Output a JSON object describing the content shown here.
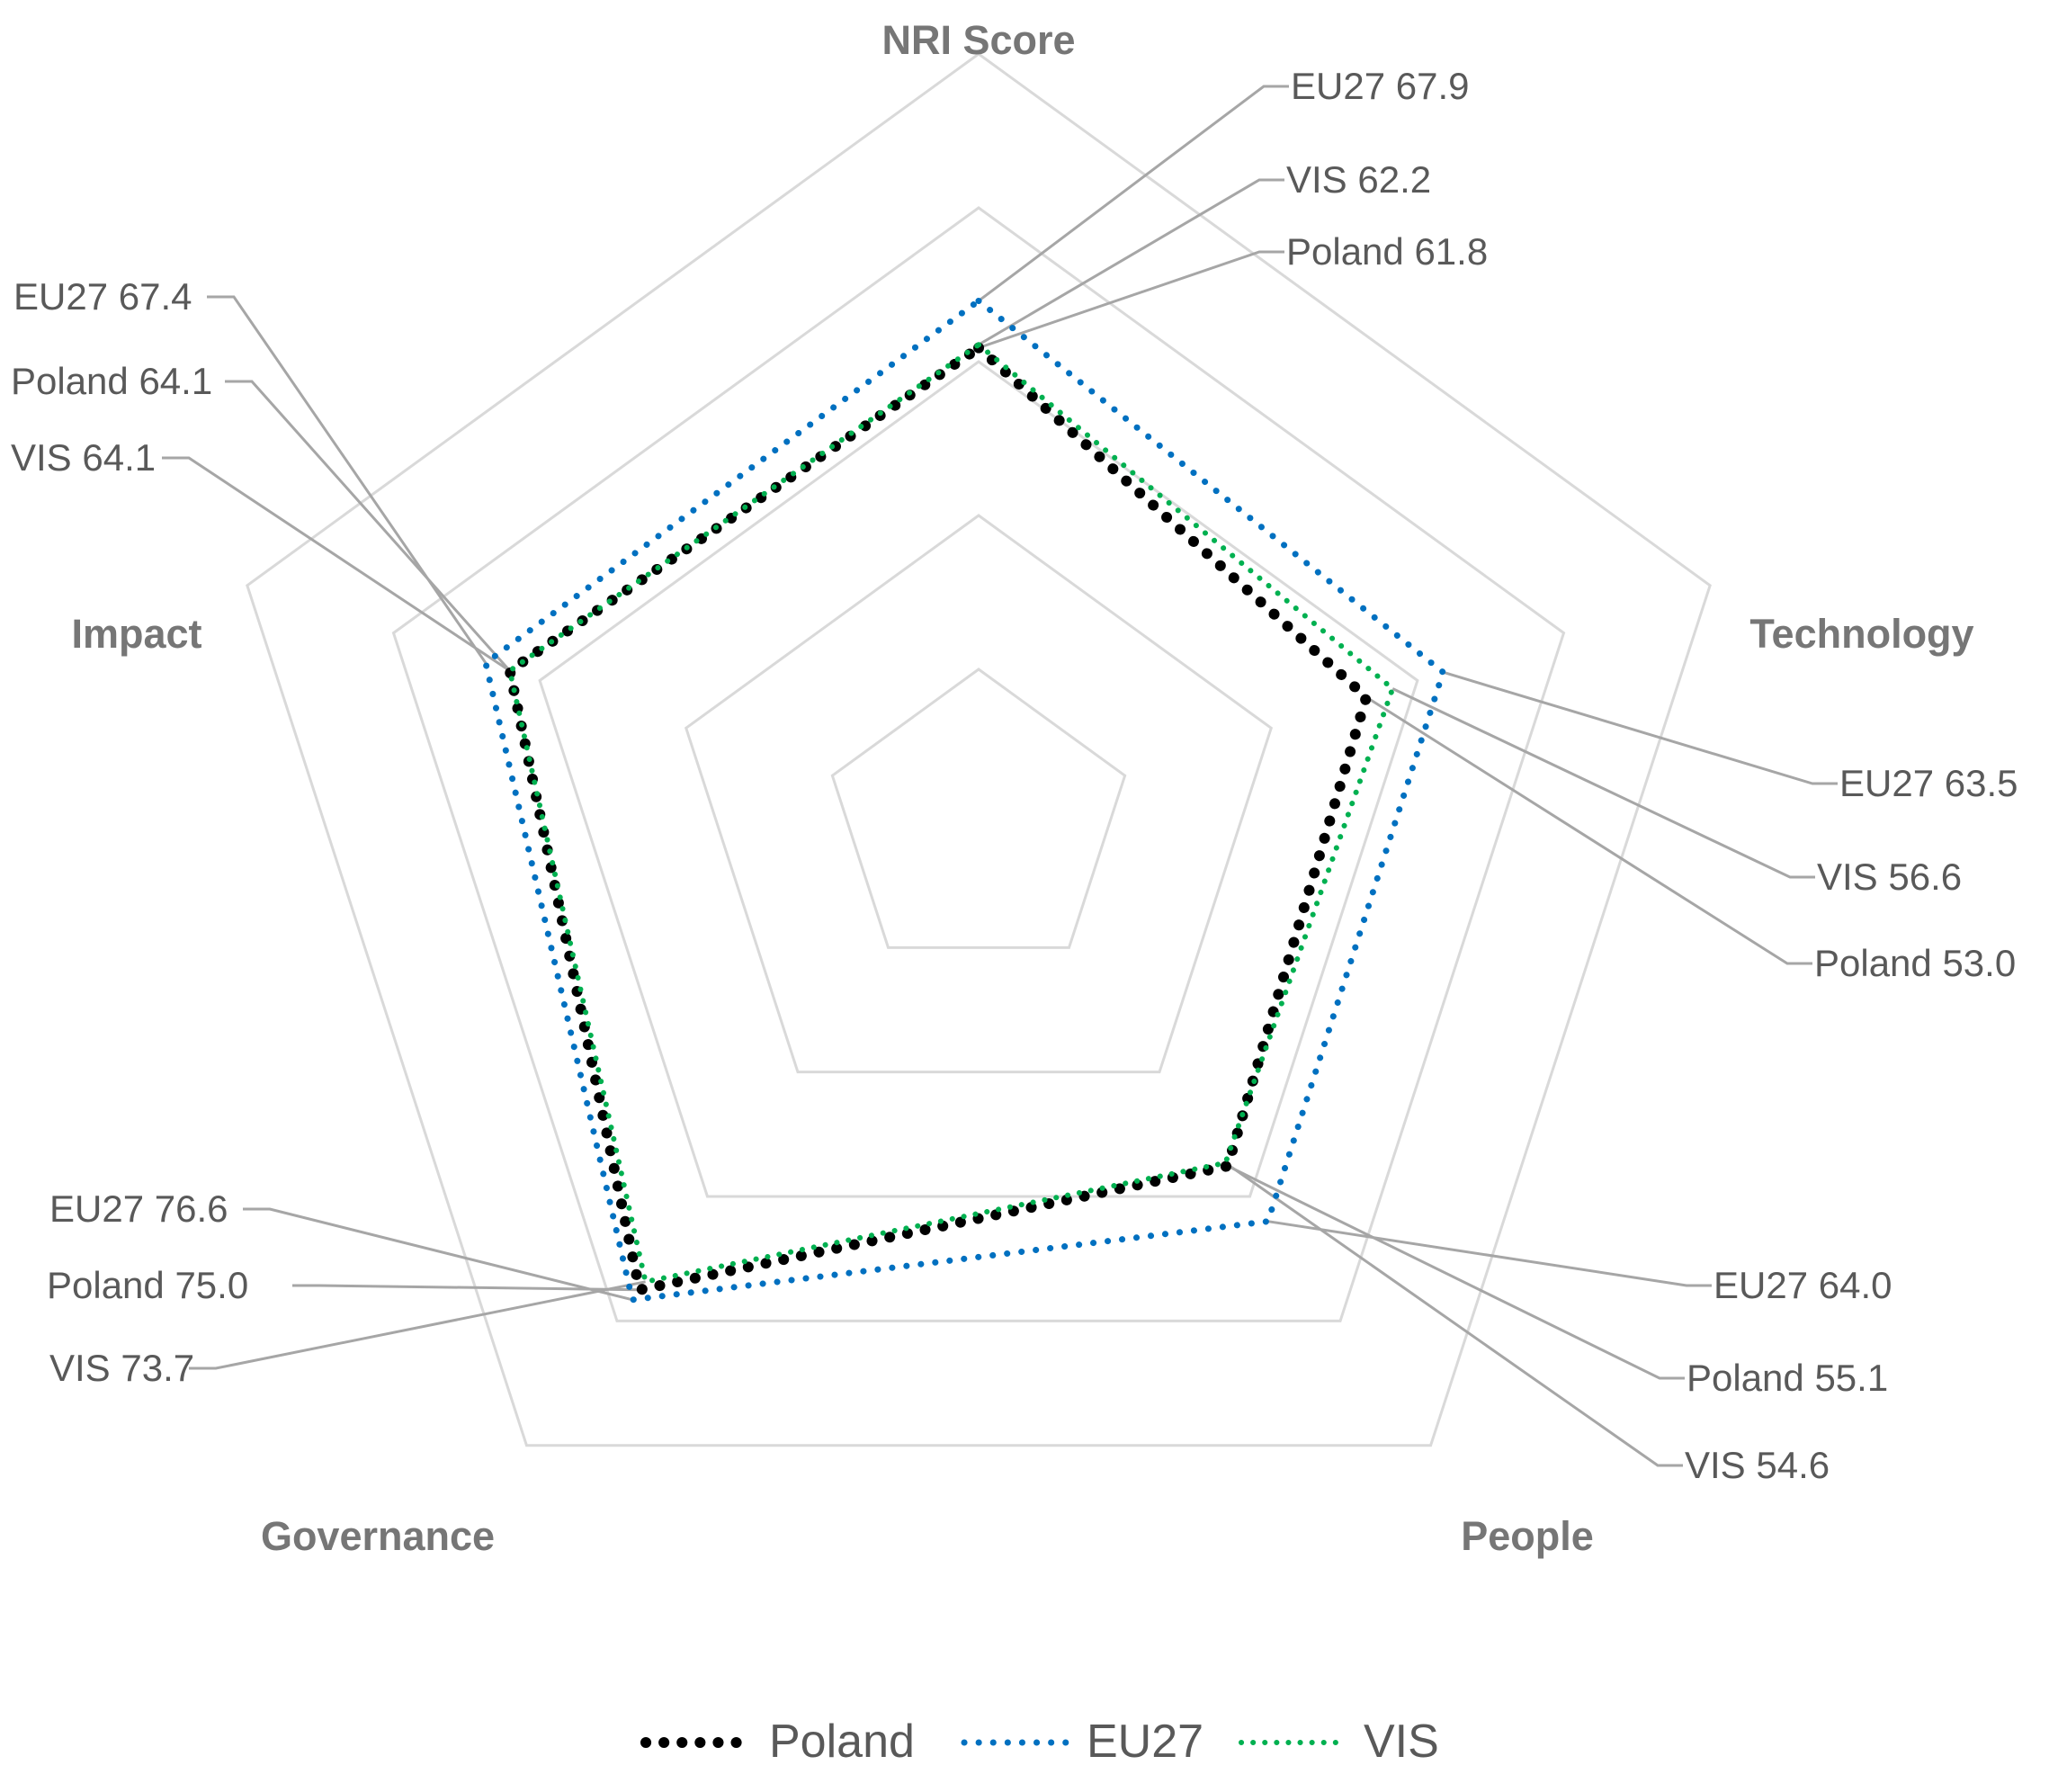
{
  "chart_data": {
    "type": "radar",
    "title": "",
    "axes": [
      "NRI Score",
      "Technology",
      "People",
      "Governance",
      "Impact"
    ],
    "range": [
      0,
      100
    ],
    "gridlines": true,
    "legend_position": "bottom",
    "series": [
      {
        "name": "Poland",
        "color": "#000000",
        "values": [
          61.8,
          53.0,
          55.1,
          75.0,
          64.1
        ]
      },
      {
        "name": "EU27",
        "color": "#0070c0",
        "values": [
          67.9,
          63.5,
          64.0,
          76.6,
          67.4
        ]
      },
      {
        "name": "VIS",
        "color": "#00b050",
        "values": [
          62.2,
          56.6,
          54.6,
          73.7,
          64.1
        ]
      }
    ],
    "callouts": [
      {
        "text": "EU27 67.9",
        "series": 1,
        "axis": 0
      },
      {
        "text": "VIS 62.2",
        "series": 2,
        "axis": 0
      },
      {
        "text": "Poland 61.8",
        "series": 0,
        "axis": 0
      },
      {
        "text": "EU27 63.5",
        "series": 1,
        "axis": 1
      },
      {
        "text": "VIS 56.6",
        "series": 2,
        "axis": 1
      },
      {
        "text": "Poland 53.0",
        "series": 0,
        "axis": 1
      },
      {
        "text": "EU27 64.0",
        "series": 1,
        "axis": 2
      },
      {
        "text": "Poland 55.1",
        "series": 0,
        "axis": 2
      },
      {
        "text": "VIS 54.6",
        "series": 2,
        "axis": 2
      },
      {
        "text": "EU27 76.6",
        "series": 1,
        "axis": 3
      },
      {
        "text": "Poland 75.0",
        "series": 0,
        "axis": 3
      },
      {
        "text": "VIS 73.7",
        "series": 2,
        "axis": 3
      },
      {
        "text": "EU27 67.4",
        "series": 1,
        "axis": 4
      },
      {
        "text": "Poland 64.1",
        "series": 0,
        "axis": 4
      },
      {
        "text": "VIS 64.1",
        "series": 2,
        "axis": 4
      }
    ]
  }
}
